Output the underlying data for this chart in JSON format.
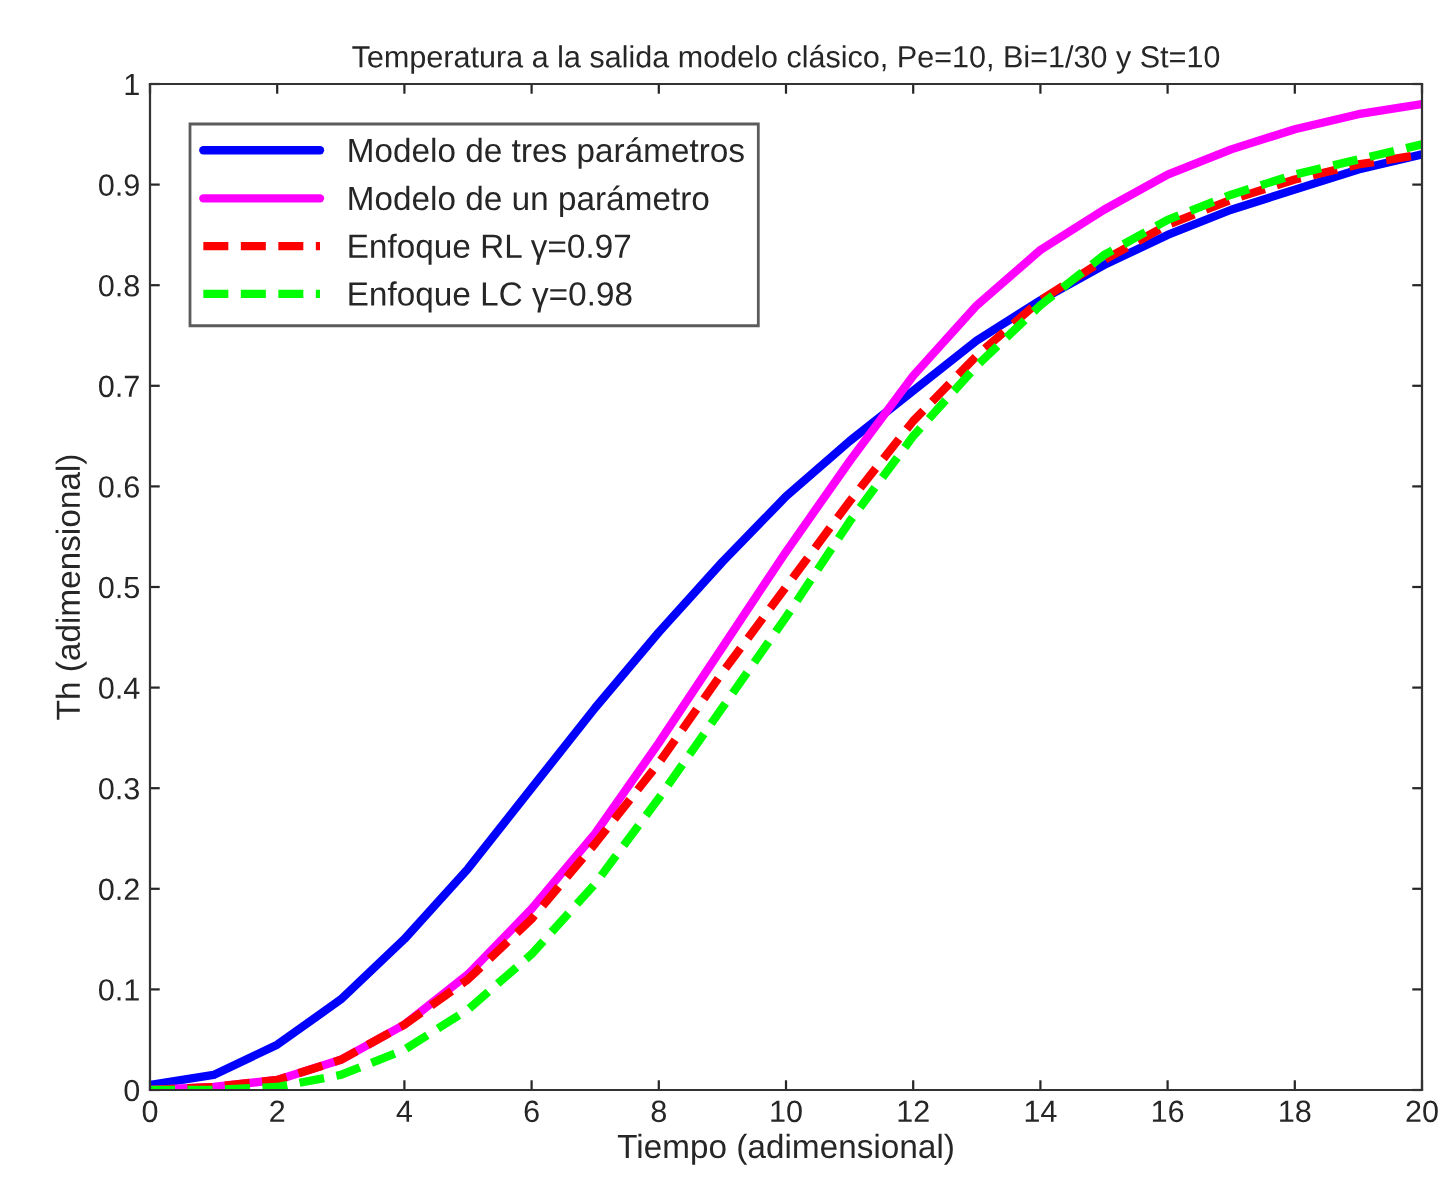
{
  "chart_data": {
    "type": "line",
    "title": "Temperatura a la salida modelo clásico, Pe=10, Bi=1/30 y St=10",
    "xlabel": "Tiempo (adimensional)",
    "ylabel": "Th (adimensional)",
    "x": [
      0,
      1,
      2,
      3,
      4,
      5,
      6,
      7,
      8,
      9,
      10,
      11,
      12,
      13,
      14,
      15,
      16,
      17,
      18,
      19,
      20
    ],
    "series": [
      {
        "name": "Modelo de tres parámetros",
        "color": "#0000ff",
        "line_style": "solid",
        "values": [
          0.005,
          0.015,
          0.045,
          0.09,
          0.15,
          0.22,
          0.3,
          0.38,
          0.455,
          0.525,
          0.59,
          0.645,
          0.695,
          0.745,
          0.785,
          0.82,
          0.85,
          0.875,
          0.895,
          0.915,
          0.93
        ]
      },
      {
        "name": "Modelo de un parámetro",
        "color": "#ff00ff",
        "line_style": "solid",
        "values": [
          0,
          0.003,
          0.01,
          0.03,
          0.065,
          0.115,
          0.18,
          0.255,
          0.345,
          0.44,
          0.535,
          0.625,
          0.71,
          0.78,
          0.835,
          0.875,
          0.91,
          0.935,
          0.955,
          0.97,
          0.98
        ]
      },
      {
        "name": "Enfoque RL γ=0.97",
        "color": "#ff0000",
        "line_style": "dashed",
        "values": [
          0,
          0.003,
          0.01,
          0.03,
          0.065,
          0.11,
          0.17,
          0.245,
          0.325,
          0.415,
          0.5,
          0.585,
          0.665,
          0.73,
          0.785,
          0.825,
          0.86,
          0.885,
          0.905,
          0.92,
          0.93
        ]
      },
      {
        "name": "Enfoque LC γ=0.98",
        "color": "#00ff00",
        "line_style": "dashed",
        "values": [
          0,
          0,
          0.003,
          0.015,
          0.04,
          0.08,
          0.135,
          0.205,
          0.29,
          0.38,
          0.47,
          0.565,
          0.65,
          0.72,
          0.78,
          0.83,
          0.865,
          0.89,
          0.91,
          0.925,
          0.94
        ]
      }
    ],
    "xlim": [
      0,
      20
    ],
    "xticks": [
      0,
      2,
      4,
      6,
      8,
      10,
      12,
      14,
      16,
      18,
      20
    ],
    "ylim": [
      0,
      1
    ],
    "yticks": [
      0,
      0.1,
      0.2,
      0.3,
      0.4,
      0.5,
      0.6,
      0.7,
      0.8,
      0.9,
      1
    ],
    "grid": false,
    "legend": "top left",
    "marker": "none"
  }
}
